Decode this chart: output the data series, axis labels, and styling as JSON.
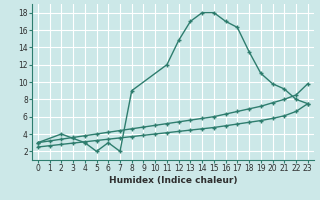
{
  "bg_color": "#cce8e8",
  "grid_color": "#aacccc",
  "line_color": "#2e7d6e",
  "xlabel": "Humidex (Indice chaleur)",
  "xlim": [
    -0.5,
    23.5
  ],
  "ylim": [
    1,
    19
  ],
  "xticks": [
    0,
    1,
    2,
    3,
    4,
    5,
    6,
    7,
    8,
    9,
    10,
    11,
    12,
    13,
    14,
    15,
    16,
    17,
    18,
    19,
    20,
    21,
    22,
    23
  ],
  "yticks": [
    2,
    4,
    6,
    8,
    10,
    12,
    14,
    16,
    18
  ],
  "curve1_x": [
    0,
    2,
    3,
    4,
    5,
    6,
    7,
    8,
    11,
    12,
    13,
    14,
    15,
    16,
    17,
    18,
    19,
    20,
    21,
    22,
    23
  ],
  "curve1_y": [
    3.0,
    4.0,
    3.5,
    3.0,
    2.0,
    3.0,
    2.0,
    9.0,
    12.0,
    14.8,
    17.0,
    18.0,
    18.0,
    17.0,
    16.3,
    13.5,
    11.0,
    9.8,
    9.2,
    8.0,
    7.5
  ],
  "curve2_x": [
    0,
    1,
    2,
    3,
    4,
    5,
    6,
    7,
    8,
    9,
    10,
    11,
    12,
    13,
    14,
    15,
    16,
    17,
    18,
    19,
    20,
    21,
    22,
    23
  ],
  "curve2_y": [
    3.0,
    3.2,
    3.4,
    3.6,
    3.8,
    4.0,
    4.2,
    4.4,
    4.6,
    4.8,
    5.0,
    5.2,
    5.4,
    5.6,
    5.8,
    6.0,
    6.3,
    6.6,
    6.9,
    7.2,
    7.6,
    8.0,
    8.5,
    9.8
  ],
  "curve3_x": [
    0,
    1,
    2,
    3,
    4,
    5,
    6,
    7,
    8,
    9,
    10,
    11,
    12,
    13,
    14,
    15,
    16,
    17,
    18,
    19,
    20,
    21,
    22,
    23
  ],
  "curve3_y": [
    2.5,
    2.65,
    2.8,
    2.95,
    3.1,
    3.25,
    3.4,
    3.55,
    3.7,
    3.85,
    4.0,
    4.15,
    4.3,
    4.45,
    4.6,
    4.75,
    4.95,
    5.15,
    5.35,
    5.55,
    5.8,
    6.1,
    6.6,
    7.5
  ],
  "tick_fontsize": 5.5,
  "xlabel_fontsize": 6.5
}
